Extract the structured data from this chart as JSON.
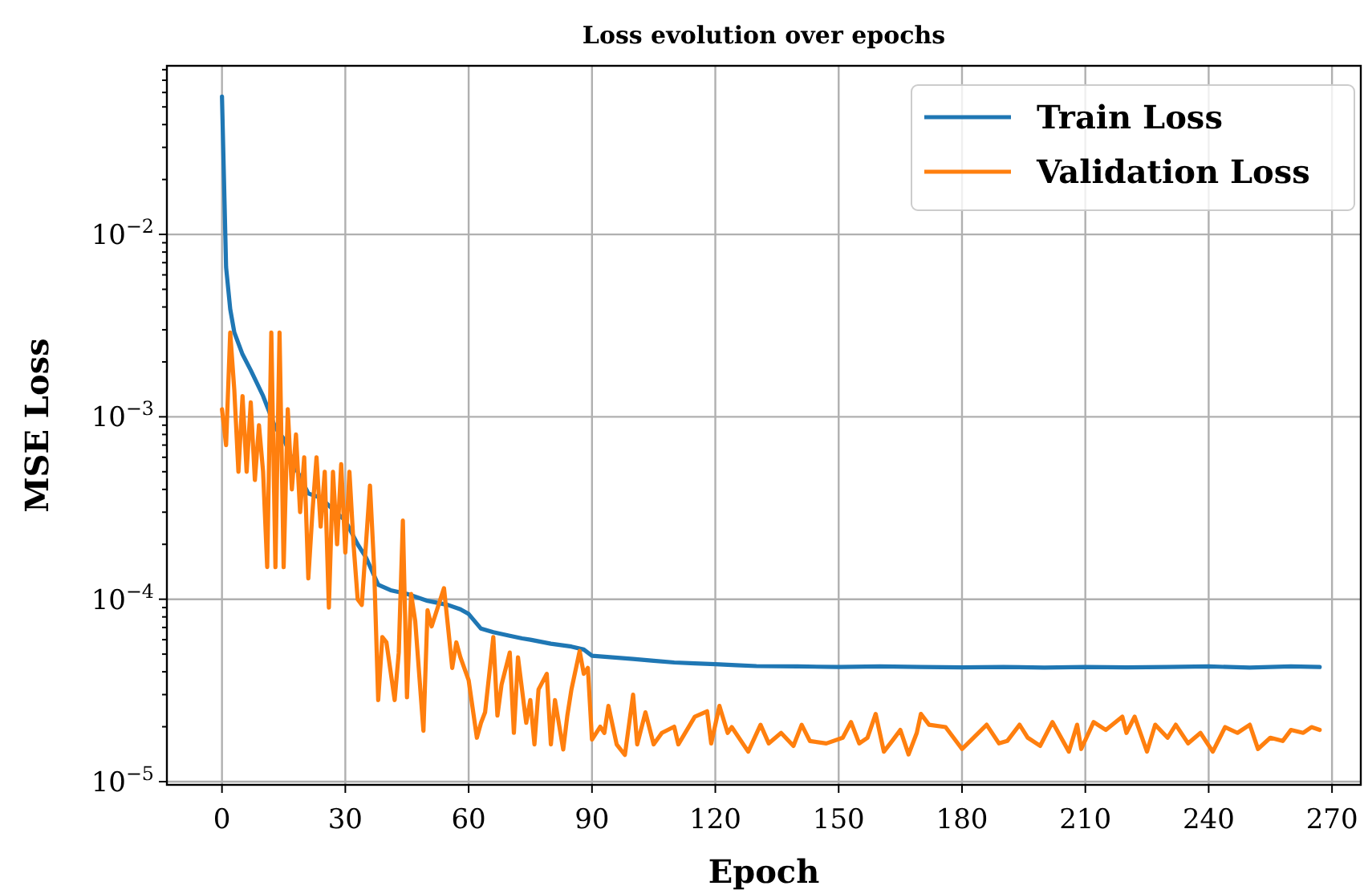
{
  "chart_data": {
    "type": "line",
    "title": "Loss evolution over epochs",
    "xlabel": "Epoch",
    "ylabel": "MSE Loss",
    "log": "y",
    "grid": true,
    "legend": "top right",
    "line_style": "solid",
    "marker": "none",
    "xlim": [
      -13.4,
      277
    ],
    "xticks": [
      0,
      30,
      60,
      90,
      120,
      150,
      180,
      210,
      240,
      270
    ],
    "ylim": [
      9.6e-06,
      0.084
    ],
    "yticks": [
      {
        "value": 1e-05,
        "label": "10$^{−5}$"
      },
      {
        "value": 0.0001,
        "label": "10$^{−4}$"
      },
      {
        "value": 0.001,
        "label": "10$^{−3}$"
      },
      {
        "value": 0.01,
        "label": "10$^{−2}$"
      },
      {
        "value": 2e-05,
        "label": null
      },
      {
        "value": 3e-05,
        "label": null
      },
      {
        "value": 4e-05,
        "label": null
      },
      {
        "value": 5e-05,
        "label": null
      },
      {
        "value": 6e-05,
        "label": null
      },
      {
        "value": 7e-05,
        "label": null
      },
      {
        "value": 8e-05,
        "label": null
      },
      {
        "value": 9e-05,
        "label": null
      },
      {
        "value": 0.0002,
        "label": null
      },
      {
        "value": 0.0003,
        "label": null
      },
      {
        "value": 0.0004,
        "label": null
      },
      {
        "value": 0.0005,
        "label": null
      },
      {
        "value": 0.0006,
        "label": null
      },
      {
        "value": 0.0007,
        "label": null
      },
      {
        "value": 0.0008,
        "label": null
      },
      {
        "value": 0.0009,
        "label": null
      },
      {
        "value": 0.002,
        "label": null
      },
      {
        "value": 0.003,
        "label": null
      },
      {
        "value": 0.004,
        "label": null
      },
      {
        "value": 0.005,
        "label": null
      },
      {
        "value": 0.006,
        "label": null
      },
      {
        "value": 0.007,
        "label": null
      },
      {
        "value": 0.008,
        "label": null
      },
      {
        "value": 0.009,
        "label": null
      },
      {
        "value": 0.02,
        "label": null
      },
      {
        "value": 0.03,
        "label": null
      },
      {
        "value": 0.04,
        "label": null
      },
      {
        "value": 0.05,
        "label": null
      },
      {
        "value": 0.06,
        "label": null
      },
      {
        "value": 0.07,
        "label": null
      },
      {
        "value": 0.08,
        "label": null
      }
    ],
    "series": [
      {
        "name": "Train Loss",
        "color": "#1f77b4",
        "x": [
          0,
          1,
          2,
          3,
          5,
          7,
          10,
          13,
          15,
          18,
          21,
          24,
          27,
          30,
          33,
          35,
          38,
          41,
          45,
          50,
          55,
          58,
          60,
          63,
          66,
          70,
          73,
          75,
          80,
          85,
          88,
          90,
          95,
          100,
          105,
          110,
          115,
          120,
          125,
          130,
          140,
          150,
          160,
          170,
          180,
          190,
          200,
          210,
          220,
          230,
          240,
          250,
          260,
          267
        ],
        "values": [
          0.057,
          0.0066,
          0.0039,
          0.0029,
          0.0022,
          0.0018,
          0.0013,
          0.00087,
          0.00076,
          0.00052,
          0.00038,
          0.00036,
          0.00031,
          0.00027,
          0.0002,
          0.00017,
          0.00012,
          0.000112,
          0.000107,
          9.8e-05,
          9.3e-05,
          8.8e-05,
          8.3e-05,
          6.9e-05,
          6.6e-05,
          6.3e-05,
          6.1e-05,
          6e-05,
          5.7e-05,
          5.5e-05,
          5.3e-05,
          4.9e-05,
          4.8e-05,
          4.7e-05,
          4.6e-05,
          4.5e-05,
          4.45e-05,
          4.4e-05,
          4.35e-05,
          4.3e-05,
          4.28e-05,
          4.25e-05,
          4.28e-05,
          4.25e-05,
          4.23e-05,
          4.25e-05,
          4.22e-05,
          4.25e-05,
          4.23e-05,
          4.25e-05,
          4.28e-05,
          4.22e-05,
          4.28e-05,
          4.25e-05
        ]
      },
      {
        "name": "Validation Loss",
        "color": "#ff7f0e",
        "x": [
          0,
          1,
          2,
          3,
          4,
          5,
          6,
          7,
          8,
          9,
          10,
          11,
          12,
          13,
          14,
          15,
          16,
          17,
          18,
          19,
          20,
          21,
          22,
          23,
          24,
          25,
          26,
          27,
          28,
          29,
          30,
          31,
          32,
          33,
          34,
          36,
          37,
          38,
          39,
          40,
          42,
          43,
          44,
          45,
          46,
          47,
          49,
          50,
          51,
          54,
          55,
          56,
          57,
          58,
          60,
          62,
          63,
          64,
          66,
          67,
          68,
          70,
          71,
          72,
          74,
          75,
          76,
          77,
          79,
          80,
          81,
          83,
          84,
          85,
          87,
          88,
          89,
          90,
          92,
          93,
          94,
          96,
          98,
          100,
          101,
          103,
          105,
          107,
          110,
          111,
          115,
          118,
          119,
          121,
          123,
          124,
          128,
          131,
          133,
          136,
          139,
          141,
          143,
          147,
          151,
          153,
          155,
          157,
          159,
          161,
          163,
          165,
          167,
          169,
          170,
          172,
          176,
          180,
          182,
          186,
          189,
          191,
          194,
          196,
          199,
          202,
          206,
          208,
          209,
          212,
          215,
          219,
          220,
          222,
          225,
          227,
          230,
          232,
          235,
          238,
          241,
          244,
          247,
          250,
          252,
          255,
          258,
          260,
          263,
          265,
          267
        ],
        "values": [
          0.0011,
          0.0007,
          0.0029,
          0.0014,
          0.0005,
          0.0013,
          0.0005,
          0.0012,
          0.00045,
          0.0009,
          0.0005,
          0.00015,
          0.0029,
          0.00015,
          0.0029,
          0.00015,
          0.0011,
          0.0004,
          0.0008,
          0.0003,
          0.0006,
          0.00013,
          0.0003,
          0.0006,
          0.00025,
          0.0005,
          9e-05,
          0.0005,
          0.0002,
          0.00055,
          0.00018,
          0.0005,
          0.0002,
          0.0001,
          9.3e-05,
          0.00042,
          0.00015,
          2.8e-05,
          6.2e-05,
          5.8e-05,
          2.8e-05,
          5.1e-05,
          0.00027,
          2.9e-05,
          0.000107,
          7.6e-05,
          1.9e-05,
          8.7e-05,
          7.1e-05,
          0.000115,
          7e-05,
          4.2e-05,
          5.8e-05,
          4.8e-05,
          3.6e-05,
          1.74e-05,
          2.1e-05,
          2.4e-05,
          6.2e-05,
          2.3e-05,
          3.4e-05,
          5.1e-05,
          1.85e-05,
          4.8e-05,
          2.1e-05,
          2.8e-05,
          1.6e-05,
          3.2e-05,
          3.9e-05,
          1.6e-05,
          2.8e-05,
          1.5e-05,
          2.3e-05,
          3.2e-05,
          5.2e-05,
          3.9e-05,
          4.2e-05,
          1.7e-05,
          2e-05,
          1.85e-05,
          2.6e-05,
          1.6e-05,
          1.4e-05,
          3e-05,
          1.6e-05,
          2.4e-05,
          1.6e-05,
          1.85e-05,
          2e-05,
          1.6e-05,
          2.27e-05,
          2.43e-05,
          1.62e-05,
          2.6e-05,
          1.85e-05,
          1.99e-05,
          1.46e-05,
          2.05e-05,
          1.62e-05,
          1.85e-05,
          1.57e-05,
          2.05e-05,
          1.67e-05,
          1.62e-05,
          1.74e-05,
          2.12e-05,
          1.62e-05,
          1.74e-05,
          2.35e-05,
          1.46e-05,
          1.67e-05,
          1.92e-05,
          1.41e-05,
          1.85e-05,
          2.35e-05,
          2.05e-05,
          1.99e-05,
          1.51e-05,
          1.67e-05,
          2.05e-05,
          1.62e-05,
          1.67e-05,
          2.05e-05,
          1.74e-05,
          1.57e-05,
          2.12e-05,
          1.46e-05,
          2.05e-05,
          1.51e-05,
          2.12e-05,
          1.92e-05,
          2.27e-05,
          1.85e-05,
          2.27e-05,
          1.46e-05,
          2.05e-05,
          1.74e-05,
          2.05e-05,
          1.62e-05,
          1.85e-05,
          1.46e-05,
          1.99e-05,
          1.85e-05,
          2.05e-05,
          1.51e-05,
          1.74e-05,
          1.67e-05,
          1.92e-05,
          1.85e-05,
          1.99e-05,
          1.92e-05
        ]
      }
    ]
  }
}
